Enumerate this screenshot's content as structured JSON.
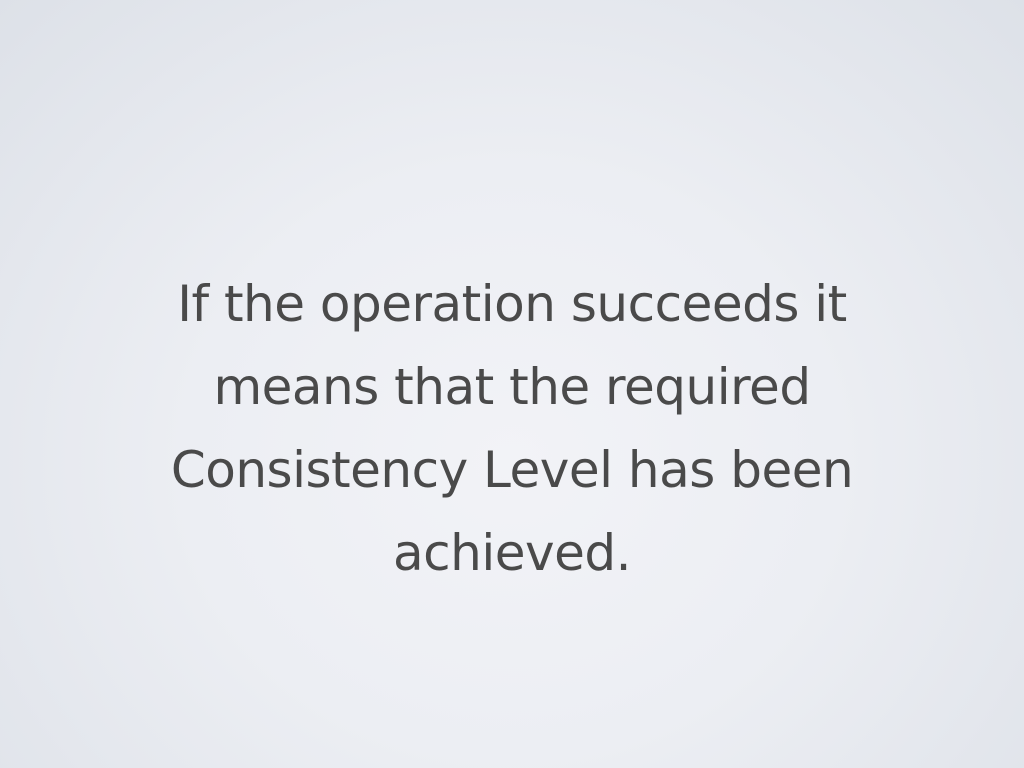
{
  "slide": {
    "lines": [
      "If the operation succeeds it",
      "means that the required",
      "Consistency Level has been",
      "achieved."
    ]
  }
}
